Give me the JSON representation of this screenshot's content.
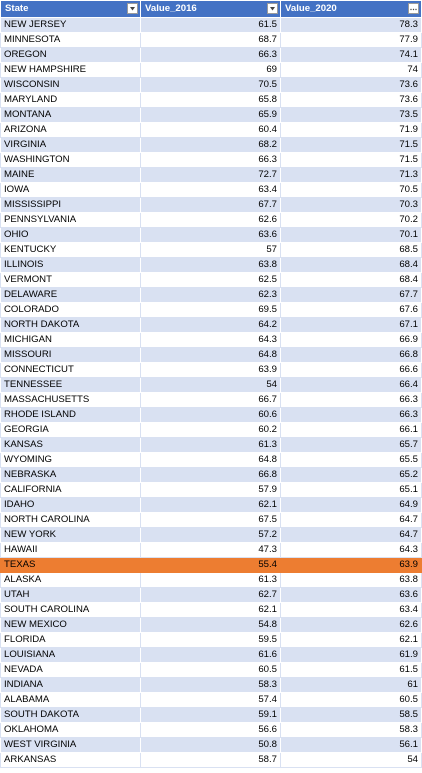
{
  "columns": [
    "State",
    "Value_2016",
    "Value_2020"
  ],
  "icons": [
    "filter-dropdown-icon",
    "filter-dropdown-icon",
    "sort-filter-ellipsis-icon"
  ],
  "colors": {
    "header": "#4472c4",
    "band": "#d9e1f2",
    "highlight": "#ed7d31"
  },
  "highlighted_state": "TEXAS",
  "rows": [
    [
      "NEW JERSEY",
      "61.5",
      "78.3"
    ],
    [
      "MINNESOTA",
      "68.7",
      "77.9"
    ],
    [
      "OREGON",
      "66.3",
      "74.1"
    ],
    [
      "NEW HAMPSHIRE",
      "69",
      "74"
    ],
    [
      "WISCONSIN",
      "70.5",
      "73.6"
    ],
    [
      "MARYLAND",
      "65.8",
      "73.6"
    ],
    [
      "MONTANA",
      "65.9",
      "73.5"
    ],
    [
      "ARIZONA",
      "60.4",
      "71.9"
    ],
    [
      "VIRGINIA",
      "68.2",
      "71.5"
    ],
    [
      "WASHINGTON",
      "66.3",
      "71.5"
    ],
    [
      "MAINE",
      "72.7",
      "71.3"
    ],
    [
      "IOWA",
      "63.4",
      "70.5"
    ],
    [
      "MISSISSIPPI",
      "67.7",
      "70.3"
    ],
    [
      "PENNSYLVANIA",
      "62.6",
      "70.2"
    ],
    [
      "OHIO",
      "63.6",
      "70.1"
    ],
    [
      "KENTUCKY",
      "57",
      "68.5"
    ],
    [
      "ILLINOIS",
      "63.8",
      "68.4"
    ],
    [
      "VERMONT",
      "62.5",
      "68.4"
    ],
    [
      "DELAWARE",
      "62.3",
      "67.7"
    ],
    [
      "COLORADO",
      "69.5",
      "67.6"
    ],
    [
      "NORTH DAKOTA",
      "64.2",
      "67.1"
    ],
    [
      "MICHIGAN",
      "64.3",
      "66.9"
    ],
    [
      "MISSOURI",
      "64.8",
      "66.8"
    ],
    [
      "CONNECTICUT",
      "63.9",
      "66.6"
    ],
    [
      "TENNESSEE",
      "54",
      "66.4"
    ],
    [
      "MASSACHUSETTS",
      "66.7",
      "66.3"
    ],
    [
      "RHODE ISLAND",
      "60.6",
      "66.3"
    ],
    [
      "GEORGIA",
      "60.2",
      "66.1"
    ],
    [
      "KANSAS",
      "61.3",
      "65.7"
    ],
    [
      "WYOMING",
      "64.8",
      "65.5"
    ],
    [
      "NEBRASKA",
      "66.8",
      "65.2"
    ],
    [
      "CALIFORNIA",
      "57.9",
      "65.1"
    ],
    [
      "IDAHO",
      "62.1",
      "64.9"
    ],
    [
      "NORTH CAROLINA",
      "67.5",
      "64.7"
    ],
    [
      "NEW YORK",
      "57.2",
      "64.7"
    ],
    [
      "HAWAII",
      "47.3",
      "64.3"
    ],
    [
      "TEXAS",
      "55.4",
      "63.9"
    ],
    [
      "ALASKA",
      "61.3",
      "63.8"
    ],
    [
      "UTAH",
      "62.7",
      "63.6"
    ],
    [
      "SOUTH CAROLINA",
      "62.1",
      "63.4"
    ],
    [
      "NEW MEXICO",
      "54.8",
      "62.6"
    ],
    [
      "FLORIDA",
      "59.5",
      "62.1"
    ],
    [
      "LOUISIANA",
      "61.6",
      "61.9"
    ],
    [
      "NEVADA",
      "60.5",
      "61.5"
    ],
    [
      "INDIANA",
      "58.3",
      "61"
    ],
    [
      "ALABAMA",
      "57.4",
      "60.5"
    ],
    [
      "SOUTH DAKOTA",
      "59.1",
      "58.5"
    ],
    [
      "OKLAHOMA",
      "56.6",
      "58.3"
    ],
    [
      "WEST VIRGINIA",
      "50.8",
      "56.1"
    ],
    [
      "ARKANSAS",
      "58.7",
      "54"
    ]
  ]
}
